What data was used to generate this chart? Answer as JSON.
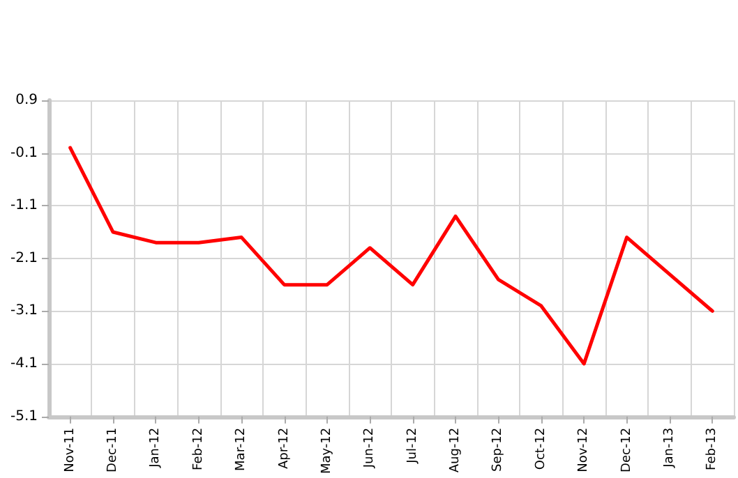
{
  "chart_data": {
    "type": "line",
    "categories": [
      "Nov-11",
      "Dec-11",
      "Jan-12",
      "Feb-12",
      "Mar-12",
      "Apr-12",
      "May-12",
      "Jun-12",
      "Jul-12",
      "Aug-12",
      "Sep-12",
      "Oct-12",
      "Nov-12",
      "Dec-12",
      "Jan-13",
      "Feb-13"
    ],
    "series": [
      {
        "color": "#ff0000",
        "values": [
          0.0,
          -1.6,
          -1.8,
          -1.8,
          -1.7,
          -2.6,
          -2.6,
          -1.9,
          -2.6,
          -1.3,
          -2.5,
          -3.0,
          -4.1,
          -1.7,
          -2.4,
          -3.1
        ]
      }
    ],
    "ylim": [
      -5.1,
      0.9
    ],
    "yticks": [
      -5.1,
      -4.1,
      -3.1,
      -2.1,
      -1.1,
      -0.1,
      0.9
    ],
    "grid": true,
    "marker": "none",
    "line_style": "solid"
  }
}
